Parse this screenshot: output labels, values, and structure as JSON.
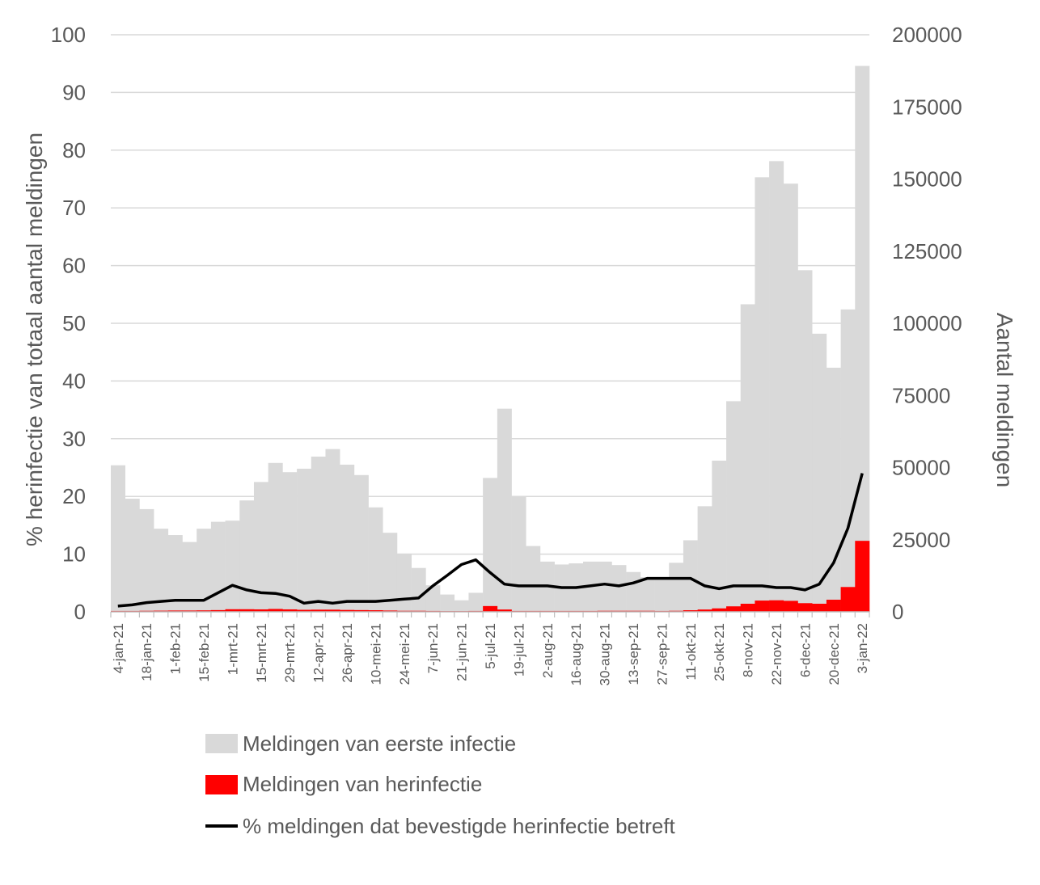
{
  "chart_data": {
    "type": "bar",
    "weeks": [
      "4-jan-21",
      "11-jan-21",
      "18-jan-21",
      "25-jan-21",
      "1-feb-21",
      "8-feb-21",
      "15-feb-21",
      "22-feb-21",
      "1-mrt-21",
      "8-mrt-21",
      "15-mrt-21",
      "22-mrt-21",
      "29-mrt-21",
      "5-apr-21",
      "12-apr-21",
      "19-apr-21",
      "26-apr-21",
      "3-mei-21",
      "10-mei-21",
      "17-mei-21",
      "24-mei-21",
      "31-mei-21",
      "7-jun-21",
      "14-jun-21",
      "21-jun-21",
      "28-jun-21",
      "5-jul-21",
      "12-jul-21",
      "19-jul-21",
      "26-jul-21",
      "2-aug-21",
      "9-aug-21",
      "16-aug-21",
      "23-aug-21",
      "30-aug-21",
      "6-sep-21",
      "13-sep-21",
      "20-sep-21",
      "27-sep-21",
      "4-okt-21",
      "11-okt-21",
      "18-okt-21",
      "25-okt-21",
      "1-nov-21",
      "8-nov-21",
      "15-nov-21",
      "22-nov-21",
      "29-nov-21",
      "6-dec-21",
      "13-dec-21",
      "20-dec-21",
      "27-dec-21",
      "3-jan-22"
    ],
    "x_tick_labels": [
      "4-jan-21",
      "18-jan-21",
      "1-feb-21",
      "15-feb-21",
      "1-mrt-21",
      "15-mrt-21",
      "29-mrt-21",
      "12-apr-21",
      "26-apr-21",
      "10-mei-21",
      "24-mei-21",
      "7-jun-21",
      "21-jun-21",
      "5-jul-21",
      "19-jul-21",
      "2-aug-21",
      "16-aug-21",
      "30-aug-21",
      "13-sep-21",
      "27-sep-21",
      "11-okt-21",
      "25-okt-21",
      "8-nov-21",
      "22-nov-21",
      "6-dec-21",
      "20-dec-21",
      "3-jan-22"
    ],
    "series": [
      {
        "name": "Meldingen van eerste infectie",
        "kind": "bar",
        "axis": "right",
        "color": "#d9d9d9",
        "values": [
          50800,
          39200,
          35600,
          28800,
          26600,
          24200,
          28800,
          31200,
          31600,
          38600,
          45000,
          51600,
          48400,
          49600,
          53800,
          56400,
          51000,
          47400,
          36200,
          27400,
          20200,
          15200,
          9200,
          6000,
          4000,
          6600,
          46400,
          70400,
          40200,
          22800,
          17400,
          16400,
          16800,
          17400,
          17400,
          16200,
          13800,
          12000,
          11600,
          17000,
          24800,
          36600,
          52400,
          73000,
          106600,
          150600,
          156200,
          148400,
          118400,
          96400,
          84600,
          104800,
          189200
        ]
      },
      {
        "name": "Meldingen van herinfectie",
        "kind": "bar",
        "axis": "right",
        "color": "#ff0000",
        "values": [
          300,
          300,
          350,
          400,
          450,
          450,
          500,
          600,
          900,
          900,
          850,
          1000,
          850,
          700,
          750,
          750,
          650,
          600,
          550,
          450,
          350,
          350,
          300,
          250,
          250,
          300,
          2000,
          800,
          300,
          300,
          300,
          300,
          300,
          300,
          350,
          350,
          350,
          350,
          300,
          350,
          550,
          800,
          1200,
          1900,
          2800,
          3900,
          4000,
          3800,
          3000,
          2800,
          4200,
          8600,
          24600
        ]
      },
      {
        "name": "% meldingen dat bevestigde herinfectie betreft",
        "kind": "line",
        "axis": "left",
        "color": "#000000",
        "values": [
          1.0,
          1.2,
          1.6,
          1.8,
          2.0,
          2.0,
          2.0,
          3.3,
          4.6,
          3.8,
          3.3,
          3.2,
          2.7,
          1.5,
          1.8,
          1.5,
          1.8,
          1.8,
          1.8,
          2.0,
          2.2,
          2.4,
          4.5,
          6.3,
          8.2,
          9.0,
          6.8,
          4.8,
          4.5,
          4.5,
          4.5,
          4.2,
          4.2,
          4.5,
          4.8,
          4.5,
          5.0,
          5.8,
          5.8,
          5.8,
          5.8,
          4.5,
          4.0,
          4.5,
          4.5,
          4.5,
          4.2,
          4.2,
          3.8,
          4.8,
          8.5,
          14.5,
          24.0
        ]
      }
    ],
    "y_left": {
      "label": "% herinfectie van totaal aantal meldingen",
      "min": 0,
      "max": 100,
      "ticks": [
        "0",
        "10",
        "20",
        "30",
        "40",
        "50",
        "60",
        "70",
        "80",
        "90",
        "100"
      ]
    },
    "y_right": {
      "label": "Aantal meldingen",
      "min": 0,
      "max": 200000,
      "ticks": [
        "0",
        "25000",
        "50000",
        "75000",
        "100000",
        "125000",
        "150000",
        "175000",
        "200000"
      ]
    },
    "grid": true,
    "legend": {
      "position": "bottom"
    }
  }
}
